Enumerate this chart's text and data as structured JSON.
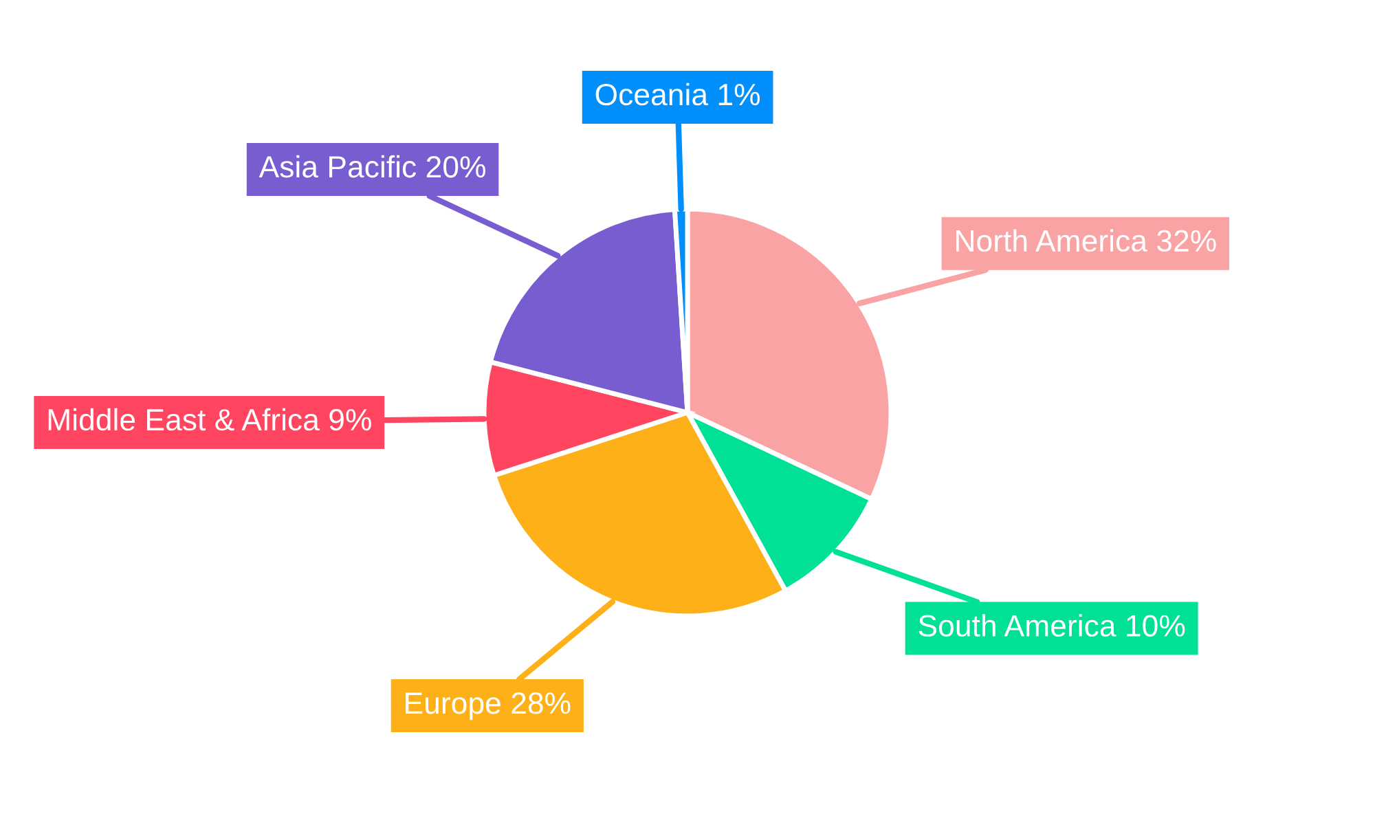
{
  "chart_data": {
    "type": "pie",
    "categories": [
      "North America",
      "South America",
      "Europe",
      "Middle East & Africa",
      "Asia Pacific",
      "Oceania"
    ],
    "values": [
      32,
      10,
      28,
      9,
      20,
      1
    ],
    "value_labels": [
      "32%",
      "10%",
      "28%",
      "9%",
      "20%",
      "1%"
    ],
    "colors": [
      "#f9a3a4",
      "#00e096",
      "#feb019",
      "#ff4560",
      "#775dd0",
      "#008ffb"
    ],
    "legend": false
  }
}
